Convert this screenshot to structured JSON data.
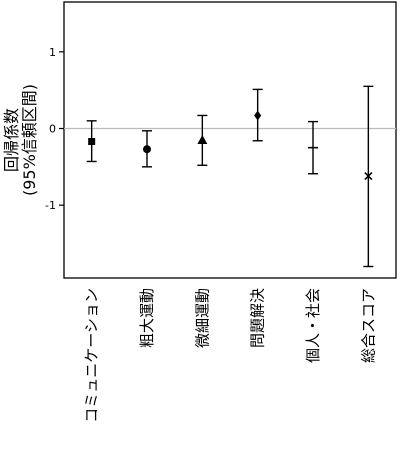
{
  "chart_data": {
    "type": "errorbar",
    "title": "",
    "xlabel": "",
    "ylabel_line1": "回帰係数",
    "ylabel_line2": "(95%信頼区間)",
    "ylim": [
      -1.95,
      1.65
    ],
    "yticks": [
      {
        "value": 1,
        "label": "1"
      },
      {
        "value": 0,
        "label": "0"
      },
      {
        "value": -1,
        "label": "-1"
      }
    ],
    "reference_line": 0,
    "grid": false,
    "categories": [
      "コミュニケーション",
      "粗大運動",
      "微細運動",
      "問題解決",
      "個人・社会",
      "総合スコア"
    ],
    "points": [
      {
        "category": "コミュニケーション",
        "estimate": -0.17,
        "lower": -0.43,
        "upper": 0.1,
        "marker": "square"
      },
      {
        "category": "粗大運動",
        "estimate": -0.27,
        "lower": -0.5,
        "upper": -0.03,
        "marker": "circle"
      },
      {
        "category": "微細運動",
        "estimate": -0.15,
        "lower": -0.48,
        "upper": 0.17,
        "marker": "triangle"
      },
      {
        "category": "問題解決",
        "estimate": 0.17,
        "lower": -0.16,
        "upper": 0.51,
        "marker": "diamond"
      },
      {
        "category": "個人・社会",
        "estimate": -0.25,
        "lower": -0.59,
        "upper": 0.09,
        "marker": "hline"
      },
      {
        "category": "総合スコア",
        "estimate": -0.62,
        "lower": -1.8,
        "upper": 0.55,
        "marker": "x"
      }
    ],
    "colors": {
      "marks": "#000000",
      "axis": "#000000",
      "reference_line": "#bbbbbb",
      "background": "#ffffff"
    }
  }
}
